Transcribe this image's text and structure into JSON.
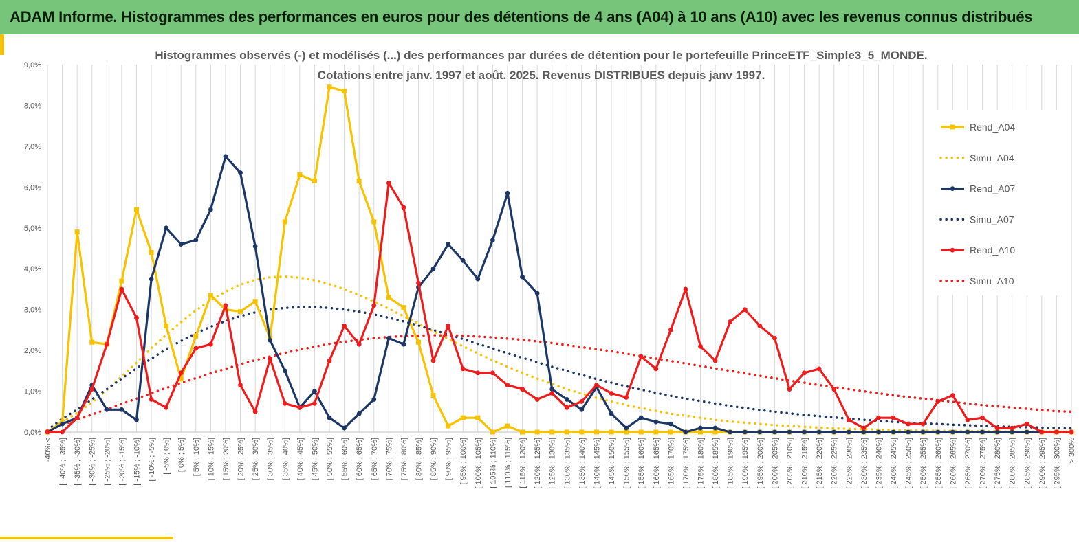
{
  "header": {
    "title": "ADAM Informe. Histogrammes des performances en euros pour des détentions de 4 ans (A04) à 10 ans (A10) avec les revenus connus distribués"
  },
  "colors": {
    "header_bg": "#77c57a",
    "accent": "#f4c20c",
    "A04": "#f7c200",
    "A07": "#1c3766",
    "A10": "#ee1c1c",
    "grid": "#d9d9d9",
    "text": "#595959"
  },
  "chart_data": {
    "type": "line",
    "title": [
      "Histogrammes observés (-) et modélisés (...) des performances par durées de détention pour le portefeuille PrinceETF_Simple3_5_MONDE.",
      "Cotations entre janv. 1997 et août. 2025. Revenus DISTRIBUES depuis janv 1997."
    ],
    "xlabel": "",
    "ylabel": "",
    "ylim": [
      0,
      9
    ],
    "y_unit": "%",
    "yticks": [
      "0,0%",
      "1,0%",
      "2,0%",
      "3,0%",
      "4,0%",
      "5,0%",
      "6,0%",
      "7,0%",
      "8,0%",
      "9,0%"
    ],
    "grid": "vertical",
    "legend_position": "right",
    "categories": [
      "-40% <",
      "[ -40% ; -35%]",
      "[ -35% ; -30%]",
      "[ -30% ; -25%]",
      "[ -25% ; -20%]",
      "[ -20% ; -15%]",
      "[ -15% ; -10%]",
      "[ -10% ; -5%]",
      "[ -5% ; 0%]",
      "[ 0% ; 5%]",
      "[ 5% ; 10%]",
      "[ 10% ; 15%]",
      "[ 15% ; 20%]",
      "[ 20% ; 25%]",
      "[ 25% ; 30%]",
      "[ 30% ; 35%]",
      "[ 35% ; 40%]",
      "[ 40% ; 45%]",
      "[ 45% ; 50%]",
      "[ 50% ; 55%]",
      "[ 55% ; 60%]",
      "[ 60% ; 65%]",
      "[ 65% ; 70%]",
      "[ 70% ; 75%]",
      "[ 75% ; 80%]",
      "[ 80% ; 85%]",
      "[ 85% ; 90%]",
      "[ 90% ; 95%]",
      "[ 95% ; 100%]",
      "[ 100% ; 105%]",
      "[ 105% ; 110%]",
      "[ 110% ; 115%]",
      "[ 115% ; 120%]",
      "[ 120% ; 125%]",
      "[ 125% ; 130%]",
      "[ 130% ; 135%]",
      "[ 135% ; 140%]",
      "[ 140% ; 145%]",
      "[ 145% ; 150%]",
      "[ 150% ; 155%]",
      "[ 155% ; 160%]",
      "[ 160% ; 165%]",
      "[ 165% ; 170%]",
      "[ 170% ; 175%]",
      "[ 175% ; 180%]",
      "[ 180% ; 185%]",
      "[ 185% ; 190%]",
      "[ 190% ; 195%]",
      "[ 195% ; 200%]",
      "[ 200% ; 205%]",
      "[ 205% ; 210%]",
      "[ 210% ; 215%]",
      "[ 215% ; 220%]",
      "[ 220% ; 225%]",
      "[ 225% ; 230%]",
      "[ 230% ; 235%]",
      "[ 235% ; 240%]",
      "[ 240% ; 245%]",
      "[ 245% ; 250%]",
      "[ 250% ; 255%]",
      "[ 255% ; 260%]",
      "[ 260% ; 265%]",
      "[ 265% ; 270%]",
      "[ 270% ; 275%]",
      "[ 275% ; 280%]",
      "[ 280% ; 285%]",
      "[ 285% ; 290%]",
      "[ 290% ; 295%]",
      "[ 295% ; 300%]",
      "> 300%"
    ],
    "series": [
      {
        "name": "Rend_A04",
        "style": "solid",
        "color_key": "A04",
        "values": [
          0,
          0.25,
          4.9,
          2.2,
          2.15,
          3.7,
          5.45,
          4.4,
          2.6,
          1.3,
          2.35,
          3.35,
          3.0,
          2.95,
          3.2,
          2.3,
          5.15,
          6.3,
          6.15,
          8.45,
          8.35,
          6.15,
          5.15,
          3.3,
          3.05,
          2.2,
          0.9,
          0.15,
          0.35,
          0.35,
          0,
          0.15,
          0,
          0,
          0,
          0,
          0,
          0,
          0,
          0,
          0,
          0,
          0,
          0,
          0,
          0,
          0,
          0,
          0,
          0,
          0,
          0,
          0,
          0,
          0,
          0,
          0,
          0,
          0,
          0,
          0,
          0,
          0,
          0,
          0,
          0,
          0,
          0,
          0,
          0
        ]
      },
      {
        "name": "Simu_A04",
        "style": "dotted",
        "color_key": "A04",
        "values": [
          0.05,
          0.25,
          0.47,
          0.73,
          1.03,
          1.36,
          1.7,
          2.05,
          2.38,
          2.69,
          2.98,
          3.23,
          3.44,
          3.61,
          3.73,
          3.79,
          3.81,
          3.78,
          3.72,
          3.62,
          3.5,
          3.36,
          3.2,
          3.02,
          2.84,
          2.65,
          2.47,
          2.28,
          2.1,
          1.93,
          1.76,
          1.6,
          1.45,
          1.31,
          1.18,
          1.05,
          0.94,
          0.84,
          0.75,
          0.66,
          0.59,
          0.52,
          0.45,
          0.4,
          0.35,
          0.3,
          0.26,
          0.23,
          0.2,
          0.17,
          0.15,
          0.13,
          0.11,
          0.09,
          0.08,
          0.07,
          0.06,
          0.05,
          0.04,
          0.04,
          0.03,
          0.03,
          0.02,
          0.02,
          0.02,
          0.01,
          0.01,
          0.01,
          0.01,
          0.01
        ]
      },
      {
        "name": "Rend_A07",
        "style": "solid",
        "color_key": "A07",
        "values": [
          0,
          0.2,
          0.35,
          1.15,
          0.55,
          0.55,
          0.3,
          3.75,
          5.0,
          4.6,
          4.7,
          5.45,
          6.75,
          6.35,
          4.55,
          2.25,
          1.5,
          0.6,
          1.0,
          0.35,
          0.1,
          0.45,
          0.8,
          2.3,
          2.15,
          3.55,
          4.0,
          4.6,
          4.2,
          3.75,
          4.7,
          5.85,
          3.8,
          3.4,
          1.05,
          0.8,
          0.55,
          1.1,
          0.45,
          0.1,
          0.35,
          0.25,
          0.2,
          0,
          0.1,
          0.1,
          0,
          0,
          0,
          0,
          0,
          0,
          0,
          0,
          0,
          0,
          0,
          0,
          0,
          0,
          0,
          0,
          0,
          0,
          0,
          0,
          0,
          0,
          0,
          0
        ]
      },
      {
        "name": "Simu_A07",
        "style": "dotted",
        "color_key": "A07",
        "values": [
          0.05,
          0.33,
          0.55,
          0.8,
          1.05,
          1.31,
          1.56,
          1.8,
          2.03,
          2.23,
          2.42,
          2.58,
          2.72,
          2.84,
          2.93,
          3.0,
          3.04,
          3.06,
          3.06,
          3.04,
          3.0,
          2.95,
          2.88,
          2.8,
          2.71,
          2.61,
          2.5,
          2.39,
          2.28,
          2.16,
          2.05,
          1.93,
          1.82,
          1.71,
          1.6,
          1.5,
          1.4,
          1.3,
          1.21,
          1.12,
          1.04,
          0.96,
          0.89,
          0.82,
          0.76,
          0.7,
          0.64,
          0.59,
          0.54,
          0.5,
          0.46,
          0.42,
          0.39,
          0.36,
          0.33,
          0.3,
          0.28,
          0.25,
          0.23,
          0.21,
          0.2,
          0.18,
          0.17,
          0.15,
          0.14,
          0.13,
          0.12,
          0.11,
          0.1,
          0.09
        ]
      },
      {
        "name": "Rend_A10",
        "style": "solid",
        "color_key": "A10",
        "values": [
          0,
          0,
          0.35,
          1.05,
          2.15,
          3.5,
          2.8,
          0.8,
          0.6,
          1.45,
          2.05,
          2.15,
          3.1,
          1.15,
          0.5,
          1.8,
          0.7,
          0.6,
          0.7,
          1.75,
          2.6,
          2.15,
          3.1,
          6.1,
          5.5,
          3.65,
          1.75,
          2.6,
          1.55,
          1.45,
          1.45,
          1.15,
          1.05,
          0.8,
          0.95,
          0.6,
          0.75,
          1.15,
          0.95,
          0.85,
          1.85,
          1.55,
          2.5,
          3.5,
          2.1,
          1.75,
          2.7,
          3.0,
          2.6,
          2.3,
          1.05,
          1.45,
          1.55,
          1.05,
          0.3,
          0.1,
          0.35,
          0.35,
          0.2,
          0.2,
          0.75,
          0.9,
          0.3,
          0.35,
          0.1,
          0.1,
          0.2,
          0,
          0,
          0
        ]
      },
      {
        "name": "Simu_A10",
        "style": "dotted",
        "color_key": "A10",
        "values": [
          0.05,
          0.18,
          0.3,
          0.43,
          0.56,
          0.69,
          0.82,
          0.95,
          1.08,
          1.2,
          1.32,
          1.44,
          1.55,
          1.66,
          1.76,
          1.85,
          1.94,
          2.02,
          2.09,
          2.16,
          2.21,
          2.26,
          2.3,
          2.33,
          2.35,
          2.36,
          2.37,
          2.37,
          2.36,
          2.34,
          2.32,
          2.29,
          2.26,
          2.22,
          2.18,
          2.13,
          2.08,
          2.03,
          1.98,
          1.92,
          1.86,
          1.8,
          1.74,
          1.68,
          1.62,
          1.56,
          1.5,
          1.44,
          1.38,
          1.32,
          1.26,
          1.21,
          1.15,
          1.1,
          1.05,
          1.0,
          0.95,
          0.9,
          0.86,
          0.82,
          0.78,
          0.74,
          0.7,
          0.66,
          0.63,
          0.6,
          0.57,
          0.54,
          0.51,
          0.5
        ]
      }
    ]
  }
}
